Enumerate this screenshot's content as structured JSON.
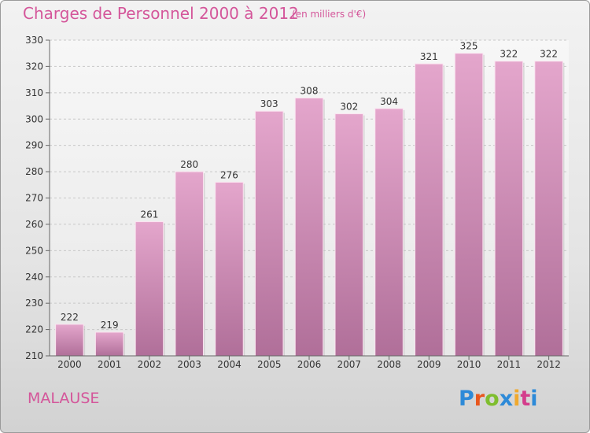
{
  "title": "Charges de Personnel 2000 à 2012",
  "subtitle": "(en milliers d'€)",
  "commune": "MALAUSE",
  "logo": {
    "text": "Proxiti",
    "colors": [
      "#2d8ad8",
      "#e8571e",
      "#7fbe2f",
      "#2d8ad8",
      "#f0a92e",
      "#d43d8c"
    ]
  },
  "chart_data": {
    "type": "bar",
    "categories": [
      "2000",
      "2001",
      "2002",
      "2003",
      "2004",
      "2005",
      "2006",
      "2007",
      "2008",
      "2009",
      "2010",
      "2011",
      "2012"
    ],
    "values": [
      222,
      219,
      261,
      280,
      276,
      303,
      308,
      302,
      304,
      321,
      325,
      322,
      322
    ],
    "title": "Charges de Personnel 2000 à 2012",
    "subtitle": "(en milliers d'€)",
    "xlabel": "",
    "ylabel": "",
    "ylim": [
      210,
      330
    ],
    "yticks": [
      210,
      220,
      230,
      240,
      250,
      260,
      270,
      280,
      290,
      300,
      310,
      320,
      330
    ],
    "grid": true,
    "bar_color": "#d98fbb"
  }
}
